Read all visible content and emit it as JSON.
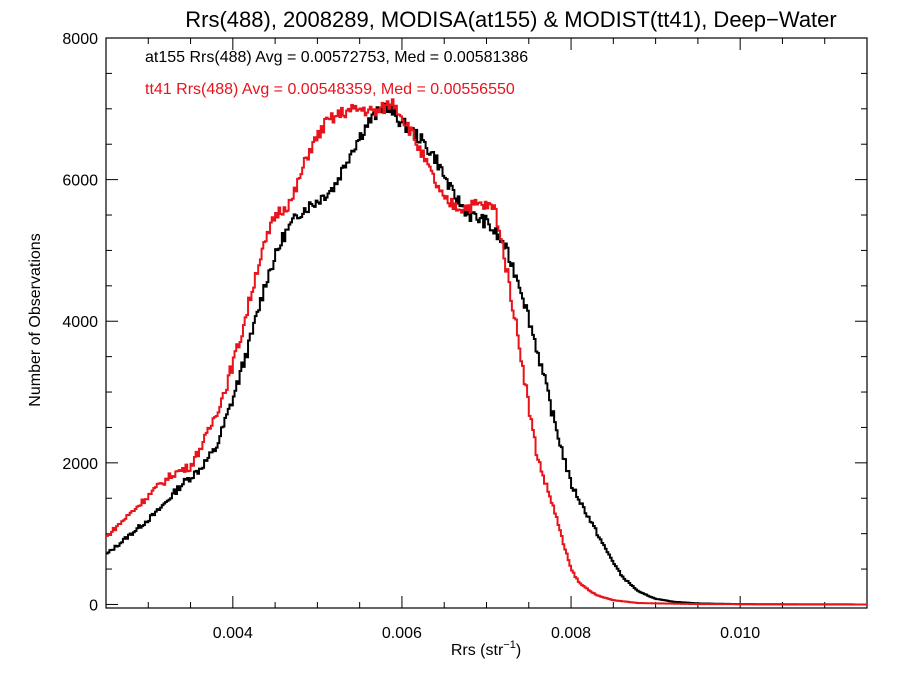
{
  "chart_data": {
    "type": "line",
    "title": "Rrs(488), 2008289, MODISA(at155) & MODIST(tt41), Deep−Water",
    "xlabel_main": "Rrs (str",
    "xlabel_sup": "−1",
    "xlabel_end": ")",
    "ylabel": "Number of Observations",
    "xlim": [
      0.0025,
      0.0115
    ],
    "ylim": [
      -50,
      8000
    ],
    "x_ticks": [
      {
        "value": 0.004,
        "label": "0.004"
      },
      {
        "value": 0.006,
        "label": "0.006"
      },
      {
        "value": 0.008,
        "label": "0.008"
      },
      {
        "value": 0.01,
        "label": "0.010"
      }
    ],
    "y_ticks": [
      {
        "value": 0,
        "label": "0"
      },
      {
        "value": 2000,
        "label": "2000"
      },
      {
        "value": 4000,
        "label": "4000"
      },
      {
        "value": 6000,
        "label": "6000"
      },
      {
        "value": 8000,
        "label": "8000"
      }
    ],
    "grid": false,
    "annotations": [
      {
        "text": "at155 Rrs(488) Avg = 0.00572753, Med = 0.00581386",
        "color": "#000000"
      },
      {
        "text": "tt41 Rrs(488) Avg = 0.00548359, Med = 0.00556550",
        "color": "#e8141c"
      }
    ],
    "series": [
      {
        "color": "#000000",
        "points": [
          [
            0.0025,
            700
          ],
          [
            0.0028,
            1000
          ],
          [
            0.0031,
            1300
          ],
          [
            0.0034,
            1700
          ],
          [
            0.0036,
            1900
          ],
          [
            0.0038,
            2200
          ],
          [
            0.004,
            2900
          ],
          [
            0.0042,
            3700
          ],
          [
            0.0044,
            4600
          ],
          [
            0.0046,
            5200
          ],
          [
            0.0048,
            5550
          ],
          [
            0.005,
            5700
          ],
          [
            0.0052,
            5900
          ],
          [
            0.0054,
            6400
          ],
          [
            0.0056,
            6800
          ],
          [
            0.0058,
            7050
          ],
          [
            0.006,
            6800
          ],
          [
            0.0062,
            6600
          ],
          [
            0.0064,
            6300
          ],
          [
            0.0066,
            5800
          ],
          [
            0.0068,
            5500
          ],
          [
            0.007,
            5400
          ],
          [
            0.0072,
            5100
          ],
          [
            0.0074,
            4500
          ],
          [
            0.0076,
            3600
          ],
          [
            0.0078,
            2600
          ],
          [
            0.008,
            1700
          ],
          [
            0.0082,
            1250
          ],
          [
            0.0084,
            800
          ],
          [
            0.0086,
            400
          ],
          [
            0.0088,
            180
          ],
          [
            0.009,
            80
          ],
          [
            0.0092,
            40
          ],
          [
            0.0095,
            15
          ],
          [
            0.01,
            5
          ],
          [
            0.0105,
            2
          ],
          [
            0.0115,
            0
          ]
        ]
      },
      {
        "color": "#e8141c",
        "points": [
          [
            0.0025,
            950
          ],
          [
            0.0028,
            1300
          ],
          [
            0.0031,
            1650
          ],
          [
            0.0033,
            1850
          ],
          [
            0.0035,
            1950
          ],
          [
            0.0037,
            2400
          ],
          [
            0.0039,
            3000
          ],
          [
            0.0041,
            3800
          ],
          [
            0.0043,
            4800
          ],
          [
            0.0045,
            5500
          ],
          [
            0.0047,
            5700
          ],
          [
            0.0049,
            6400
          ],
          [
            0.0051,
            6800
          ],
          [
            0.0053,
            6950
          ],
          [
            0.0055,
            7000
          ],
          [
            0.0057,
            6950
          ],
          [
            0.0059,
            7100
          ],
          [
            0.0061,
            6700
          ],
          [
            0.0063,
            6200
          ],
          [
            0.0065,
            5700
          ],
          [
            0.0067,
            5600
          ],
          [
            0.0069,
            5650
          ],
          [
            0.0071,
            5600
          ],
          [
            0.0072,
            5000
          ],
          [
            0.0073,
            4300
          ],
          [
            0.0074,
            3600
          ],
          [
            0.0075,
            2800
          ],
          [
            0.0076,
            2100
          ],
          [
            0.0077,
            1700
          ],
          [
            0.0078,
            1350
          ],
          [
            0.0079,
            900
          ],
          [
            0.008,
            500
          ],
          [
            0.0081,
            300
          ],
          [
            0.0083,
            130
          ],
          [
            0.0085,
            60
          ],
          [
            0.0088,
            20
          ],
          [
            0.0095,
            5
          ],
          [
            0.0115,
            0
          ]
        ]
      }
    ]
  }
}
